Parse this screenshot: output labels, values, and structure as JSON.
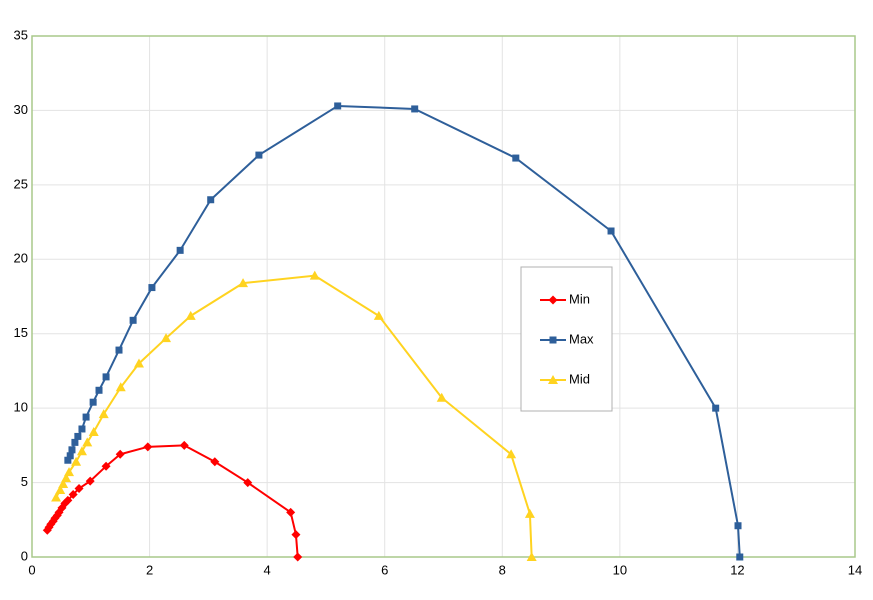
{
  "chart_data": {
    "type": "scatter",
    "xlim": [
      0,
      14
    ],
    "ylim": [
      0,
      35
    ],
    "xticks": [
      0,
      2,
      4,
      6,
      8,
      10,
      12,
      14
    ],
    "yticks": [
      0,
      5,
      10,
      15,
      20,
      25,
      30,
      35
    ],
    "grid": true,
    "series": [
      {
        "name": "Min",
        "color": "#ff0000",
        "marker": "diamond",
        "x": [
          0.26,
          0.29,
          0.32,
          0.36,
          0.39,
          0.43,
          0.46,
          0.51,
          0.56,
          0.61,
          0.7,
          0.8,
          0.99,
          1.26,
          1.5,
          1.97,
          2.59,
          3.11,
          3.67,
          4.4,
          4.49,
          4.52
        ],
        "values": [
          1.8,
          2.0,
          2.2,
          2.4,
          2.6,
          2.8,
          3.0,
          3.3,
          3.6,
          3.8,
          4.2,
          4.6,
          5.1,
          6.1,
          6.9,
          7.4,
          7.5,
          6.4,
          5.0,
          3.0,
          1.5,
          0
        ]
      },
      {
        "name": "Max",
        "color": "#2e5f9a",
        "marker": "square",
        "x": [
          0.61,
          0.65,
          0.68,
          0.73,
          0.78,
          0.85,
          0.92,
          1.04,
          1.14,
          1.26,
          1.48,
          1.72,
          2.04,
          2.52,
          3.04,
          3.86,
          5.2,
          6.51,
          8.23,
          9.85,
          11.63,
          12.01,
          12.04
        ],
        "values": [
          6.5,
          6.8,
          7.2,
          7.7,
          8.1,
          8.6,
          9.4,
          10.4,
          11.2,
          12.1,
          13.9,
          15.9,
          18.1,
          20.6,
          24.0,
          27.0,
          30.3,
          30.1,
          26.8,
          21.9,
          10.0,
          2.1,
          0
        ]
      },
      {
        "name": "Mid",
        "color": "#ffd320",
        "marker": "triangle",
        "x": [
          0.41,
          0.48,
          0.53,
          0.58,
          0.63,
          0.75,
          0.85,
          0.94,
          1.05,
          1.22,
          1.51,
          1.82,
          2.28,
          2.7,
          3.59,
          4.81,
          5.9,
          6.97,
          8.15,
          8.47,
          8.5
        ],
        "values": [
          4.0,
          4.5,
          4.9,
          5.3,
          5.7,
          6.4,
          7.1,
          7.7,
          8.4,
          9.6,
          11.4,
          13.0,
          14.7,
          16.2,
          18.4,
          18.9,
          16.2,
          10.7,
          6.9,
          2.9,
          0
        ]
      }
    ]
  }
}
